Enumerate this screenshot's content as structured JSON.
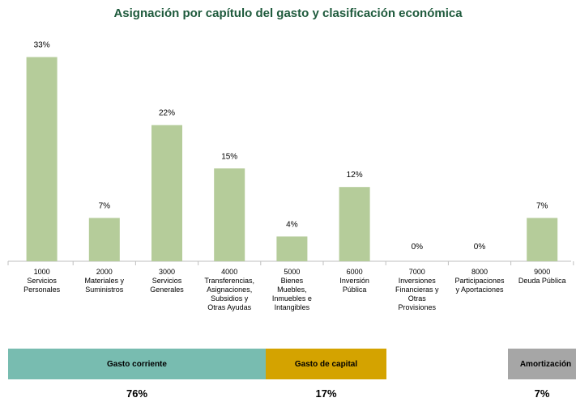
{
  "chart_data": {
    "type": "bar",
    "title": "Asignación por capítulo del gasto y clasificación económica",
    "categories": [
      "1000\nServicios\nPersonales",
      "2000\nMateriales y\nSuministros",
      "3000\nServicios\nGenerales",
      "4000\nTransferencias,\nAsignaciones,\nSubsidios y\nOtras Ayudas",
      "5000\nBienes\nMuebles,\nInmuebles e\nIntangibles",
      "6000\nInversión\nPública",
      "7000\nInversiones\nFinancieras y\nOtras\nProvisiones",
      "8000\nParticipaciones\ny Aportaciones",
      "9000\nDeuda Pública"
    ],
    "values": [
      33,
      7,
      22,
      15,
      4,
      12,
      0,
      0,
      7
    ],
    "value_labels": [
      "33%",
      "7%",
      "22%",
      "15%",
      "4%",
      "12%",
      "0%",
      "0%",
      "7%"
    ],
    "color": "#b5cc9a"
  },
  "classification": [
    {
      "name": "Gasto corriente",
      "share": "76%",
      "color": "#78bcb0"
    },
    {
      "name": "Gasto de capital",
      "share": "17%",
      "color": "#d4a300"
    },
    {
      "name": "Amortización",
      "share": "7%",
      "color": "#a6a6a6"
    }
  ]
}
